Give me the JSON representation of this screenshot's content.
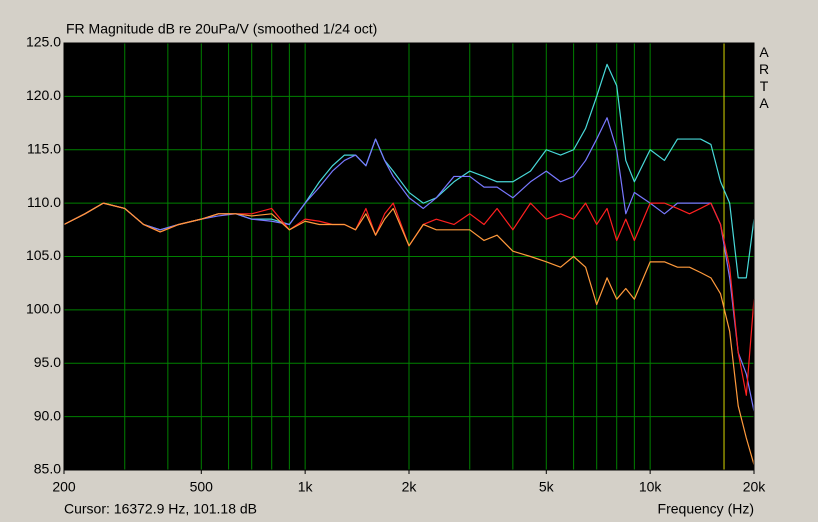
{
  "chart_data": {
    "type": "line",
    "title": "FR Magnitude dB re 20uPa/V (smoothed 1/24 oct)",
    "brand": "ARTA",
    "xlabel": "Frequency (Hz)",
    "cursor_label": "Cursor: 16372.9 Hz, 101.18 dB",
    "cursor_x": 16372.9,
    "cursor_color": "#d8d800",
    "xscale": "log",
    "grid": true,
    "grid_color": "#008000",
    "xlim": [
      200,
      20000
    ],
    "ylim": [
      85,
      125
    ],
    "xticks": [
      200,
      500,
      {
        "value": 1000,
        "label": "1k"
      },
      {
        "value": 2000,
        "label": "2k"
      },
      {
        "value": 5000,
        "label": "5k"
      },
      {
        "value": 10000,
        "label": "10k"
      },
      {
        "value": 20000,
        "label": "20k"
      }
    ],
    "xgrid_minor": [
      300,
      400,
      600,
      700,
      800,
      900,
      3000,
      4000,
      6000,
      7000,
      8000,
      9000
    ],
    "yticks": [
      {
        "value": 85,
        "label": "85.0"
      },
      {
        "value": 90,
        "label": "90.0"
      },
      {
        "value": 95,
        "label": "95.0"
      },
      {
        "value": 100,
        "label": "100.0"
      },
      {
        "value": 105,
        "label": "105.0"
      },
      {
        "value": 110,
        "label": "110.0"
      },
      {
        "value": 115,
        "label": "115.0"
      },
      {
        "value": 120,
        "label": "120.0"
      },
      {
        "value": 125,
        "label": "125.0"
      }
    ],
    "x": [
      200,
      230,
      260,
      300,
      340,
      380,
      430,
      500,
      560,
      630,
      700,
      800,
      900,
      1000,
      1100,
      1200,
      1300,
      1400,
      1500,
      1600,
      1700,
      1800,
      2000,
      2200,
      2400,
      2700,
      3000,
      3300,
      3600,
      4000,
      4500,
      5000,
      5500,
      6000,
      6500,
      7000,
      7500,
      8000,
      8500,
      9000,
      10000,
      11000,
      12000,
      13000,
      14000,
      15000,
      16000,
      17000,
      18000,
      19000,
      20000
    ],
    "series": [
      {
        "color": "#48d8d8",
        "values": [
          108,
          109,
          110,
          109.5,
          108,
          107.5,
          108,
          108.5,
          109,
          109,
          108.5,
          108.5,
          108,
          110,
          112,
          113.5,
          114.5,
          114.5,
          113.5,
          116,
          114,
          113,
          111,
          110,
          110.5,
          112,
          113,
          112.5,
          112,
          112,
          113,
          115,
          114.5,
          115,
          117,
          120,
          123,
          121,
          114,
          112,
          115,
          114,
          116,
          116,
          116,
          115.5,
          112,
          110,
          103,
          103,
          108.5
        ]
      },
      {
        "color": "#7878ff",
        "values": [
          108,
          109,
          110,
          109.5,
          108,
          107.5,
          108,
          108.5,
          108.8,
          109,
          108.5,
          108.3,
          108,
          110,
          111.5,
          113,
          114,
          114.5,
          113.5,
          116,
          114,
          112.5,
          110.5,
          109.5,
          110.5,
          112.5,
          112.5,
          111.5,
          111.5,
          110.5,
          112,
          113,
          112,
          112.5,
          114,
          116,
          118,
          115,
          109,
          111,
          110,
          109,
          110,
          110,
          110,
          110,
          108,
          103,
          96,
          94,
          90.5
        ]
      },
      {
        "color": "#ff2020",
        "values": [
          108,
          109,
          110,
          109.5,
          108,
          107.3,
          108,
          108.5,
          109,
          109,
          109,
          109.5,
          107.5,
          108.5,
          108.3,
          108,
          108,
          107.5,
          109.5,
          107,
          109,
          110,
          106,
          108,
          108.5,
          108,
          109,
          108,
          109.5,
          107.5,
          110,
          108.5,
          109,
          108.5,
          110,
          108,
          109.5,
          106.5,
          108.5,
          106.5,
          110,
          110,
          109.5,
          109,
          109.5,
          110,
          108,
          104,
          96,
          92,
          101
        ]
      },
      {
        "color": "#ff9a3c",
        "values": [
          108,
          109,
          110,
          109.5,
          108,
          107.3,
          108,
          108.5,
          109,
          109,
          108.8,
          109,
          107.5,
          108.3,
          108,
          108,
          108,
          107.5,
          109,
          107,
          108.5,
          109.5,
          106,
          108,
          107.5,
          107.5,
          107.5,
          106.5,
          107,
          105.5,
          105,
          104.5,
          104,
          105,
          104,
          100.5,
          103,
          101,
          102,
          101,
          104.5,
          104.5,
          104,
          104,
          103.5,
          103,
          101.5,
          98,
          91,
          88,
          85.5
        ]
      }
    ]
  }
}
